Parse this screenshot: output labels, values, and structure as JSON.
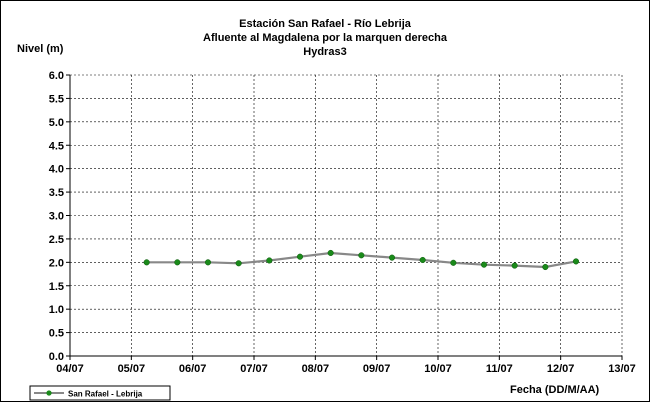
{
  "chart_data": {
    "type": "line",
    "title_lines": [
      "Estación San Rafael - Río Lebrija",
      "Afluente al Magdalena por la marquen derecha",
      "Hydras3"
    ],
    "ylabel": "Nivel (m)",
    "xlabel": "Fecha (DD/M/AA)",
    "y_ticks": [
      "0.0",
      "0.5",
      "1.0",
      "1.5",
      "2.0",
      "2.5",
      "3.0",
      "3.5",
      "4.0",
      "4.5",
      "5.0",
      "5.5",
      "6.0"
    ],
    "x_ticks": [
      "04/07",
      "05/07",
      "06/07",
      "07/07",
      "08/07",
      "09/07",
      "10/07",
      "11/07",
      "12/07",
      "13/07"
    ],
    "ylim": [
      0,
      6
    ],
    "xlim": [
      0,
      9
    ],
    "grid": true,
    "legend_position": "bottom-left",
    "series": [
      {
        "name": "San Rafael  - Lebrija",
        "line_color": "#888888",
        "marker_color": "#1a8a1a",
        "x": [
          1.25,
          1.75,
          2.25,
          2.75,
          3.25,
          3.75,
          4.25,
          4.75,
          5.25,
          5.75,
          6.25,
          6.75,
          7.25,
          7.75,
          8.25
        ],
        "y": [
          2.0,
          2.0,
          2.0,
          1.98,
          2.04,
          2.12,
          2.2,
          2.15,
          2.1,
          2.05,
          1.99,
          1.95,
          1.93,
          1.9,
          2.02
        ]
      }
    ]
  }
}
